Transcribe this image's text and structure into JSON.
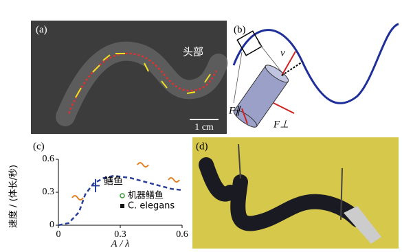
{
  "panels": {
    "a": {
      "label": "(a)",
      "head": "头部",
      "scale": "1 cm"
    },
    "b": {
      "label": "(b)",
      "v": "v",
      "f_par": "F∥",
      "f_perp": "F⊥"
    },
    "d": {
      "label": "(d)"
    }
  },
  "chart_data": {
    "type": "line",
    "label": "(c)",
    "x_label": "A / λ",
    "y_label": "速度 / (体长/秒)",
    "x": [
      0,
      0.05,
      0.1,
      0.13,
      0.17,
      0.22,
      0.27,
      0.35,
      0.45,
      0.55,
      0.6
    ],
    "values": [
      0,
      0.02,
      0.12,
      0.28,
      0.38,
      0.43,
      0.45,
      0.43,
      0.38,
      0.33,
      0.32
    ],
    "color": "#2a3f9a",
    "points": [
      {
        "name": "鳝鱼",
        "color": "#2a3f9a",
        "x": 0.18,
        "y": 0.36,
        "xerr": 0.02,
        "yerr": 0.06
      }
    ],
    "legend": [
      {
        "name": "机器鳝鱼",
        "color": "#3a9a3a",
        "marker": "circle"
      },
      {
        "name": "C. elegans",
        "color": "#111111",
        "marker": "square"
      }
    ],
    "xlim": [
      0,
      0.6
    ],
    "xticks": [
      0,
      0.3,
      0.6
    ],
    "ylim": [
      0,
      0.6
    ],
    "yticks": [
      0,
      0.3,
      0.6
    ]
  }
}
